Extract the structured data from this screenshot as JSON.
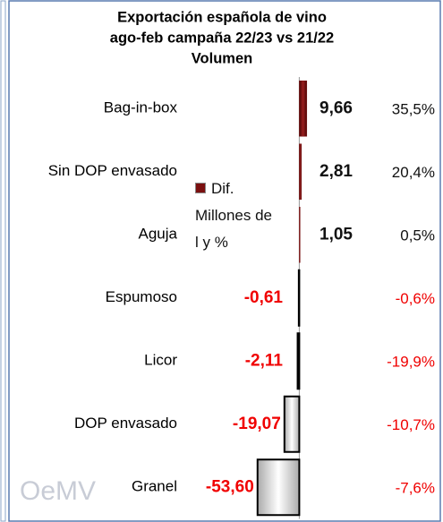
{
  "chart_data": {
    "type": "bar",
    "orientation": "horizontal",
    "title": [
      "Exportación española de vino",
      "ago-feb campaña 22/23 vs 21/22",
      "Volumen"
    ],
    "categories": [
      "Bag-in-box",
      "Sin DOP envasado",
      "Aguja",
      "Espumoso",
      "Licor",
      "DOP envasado",
      "Granel"
    ],
    "series": [
      {
        "name": "Dif. Millones de l y %",
        "color": "#7b1010",
        "negative_color": "#ffffff",
        "values": [
          9.66,
          2.81,
          1.05,
          -0.61,
          -2.11,
          -19.07,
          -53.6
        ],
        "value_labels": [
          "9,66",
          "2,81",
          "1,05",
          "-0,61",
          "-2,11",
          "-19,07",
          "-53,60"
        ]
      }
    ],
    "percentages": [
      35.5,
      20.4,
      0.5,
      -0.6,
      -19.9,
      -10.7,
      -7.6
    ],
    "percentage_labels": [
      "35,5%",
      "20,4%",
      "0,5%",
      "-0,6%",
      "-19,9%",
      "-10,7%",
      "-7,6%"
    ],
    "xlim": [
      -60,
      20
    ],
    "logo": "OeMV"
  }
}
